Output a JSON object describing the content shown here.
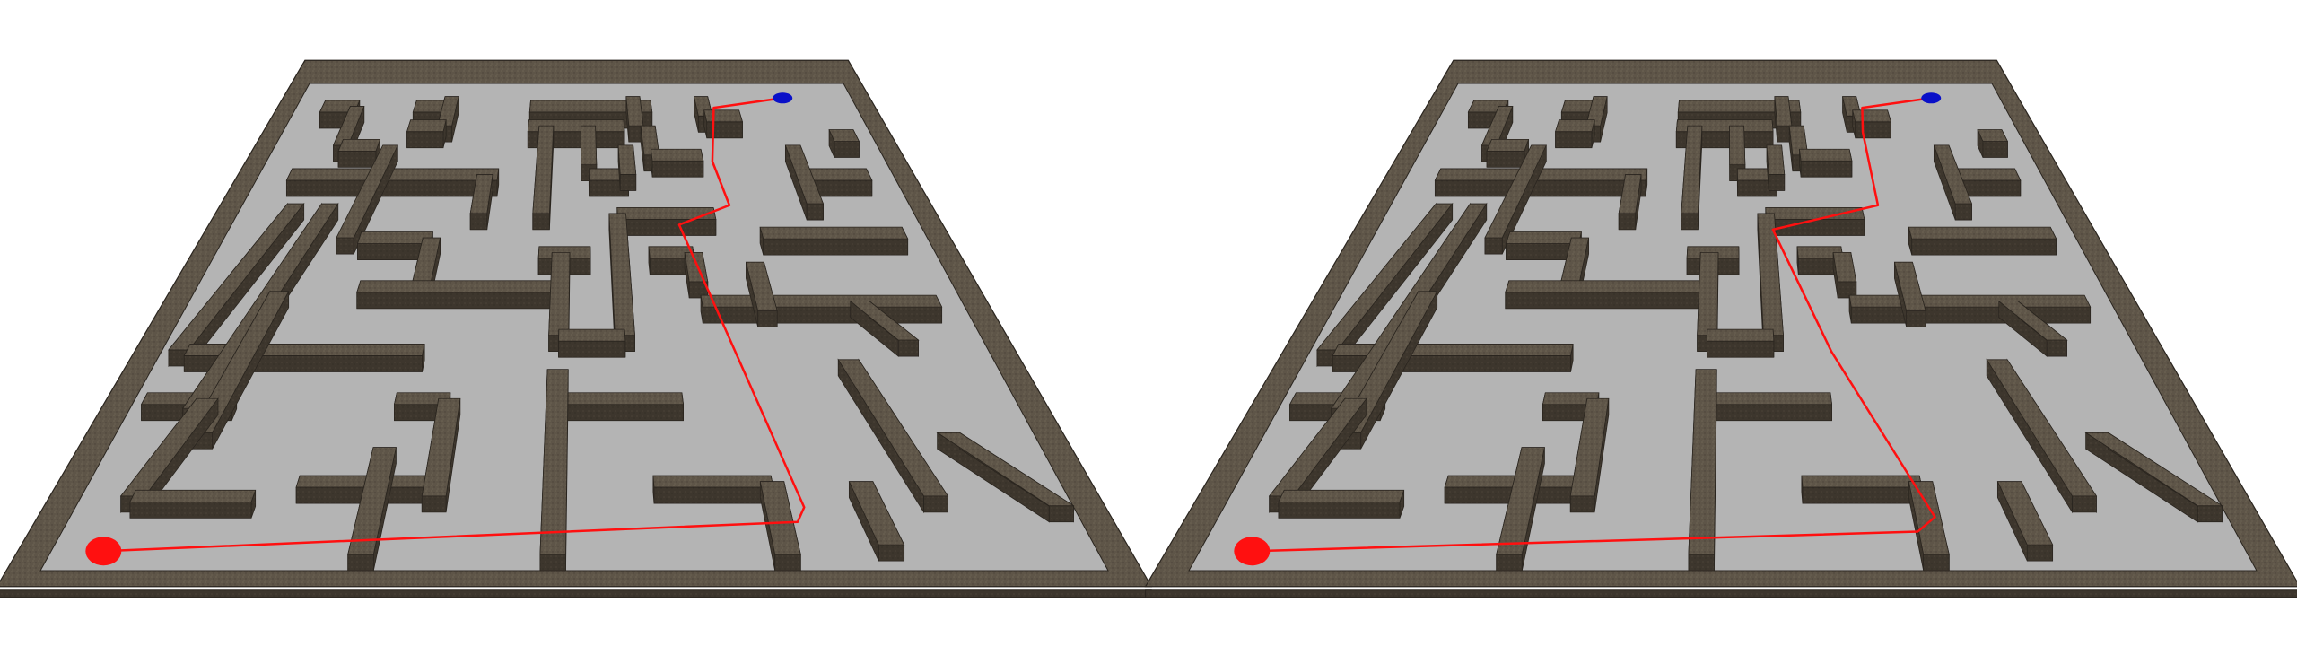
{
  "scene": {
    "background": "#ffffff",
    "board_floor_color": "#b4b4b4",
    "wall_top_color": "#5e5548",
    "wall_side_color": "#3d362d",
    "wall_edge_color": "#2a251f",
    "path_color": "#ff1010",
    "start_marker_color": "#ff1010",
    "goal_marker_color": "#0a10c8",
    "panel_count": 2
  },
  "panels": [
    {
      "name": "panel-left",
      "start_marker": "red-start-disc",
      "goal_marker": "blue-goal-disc",
      "path_label": "solution-path-a"
    },
    {
      "name": "panel-right",
      "start_marker": "red-start-disc",
      "goal_marker": "blue-goal-disc",
      "path_label": "solution-path-b"
    }
  ]
}
